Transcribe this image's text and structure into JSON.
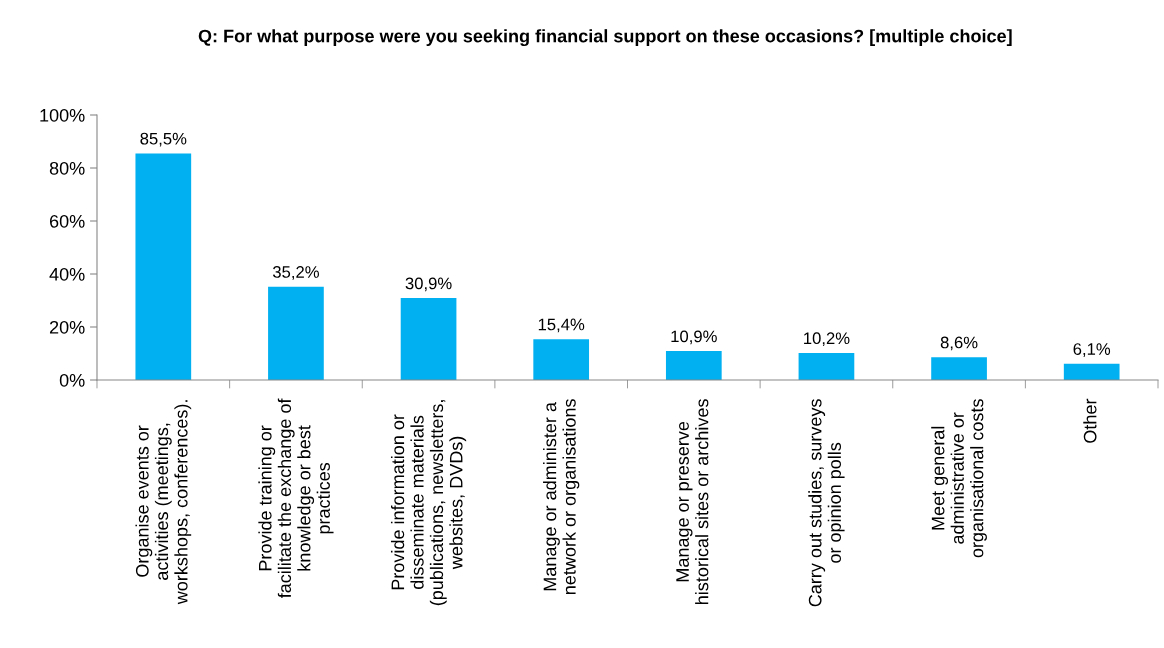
{
  "chart_data": {
    "type": "bar",
    "title": "Q: For what purpose were you seeking financial support on these occasions? [multiple choice]",
    "categories": [
      "Organise events or\nactivities (meetings,\nworkshops, conferences).",
      "Provide training or\nfacilitate the exchange of\nknowledge or best\npractices",
      "Provide information or\ndisseminate materials\n(publications, newsletters,\nwebsites, DVDs)",
      "Manage or administer a\nnetwork or organisations",
      "Manage or preserve\nhistorical sites or archives",
      "Carry out studies, surveys\nor opinion polls",
      "Meet general\nadministrative or\norganisational costs",
      "Other"
    ],
    "values": [
      85.5,
      35.2,
      30.9,
      15.4,
      10.9,
      10.2,
      8.6,
      6.1
    ],
    "value_labels": [
      "85,5%",
      "35,2%",
      "30,9%",
      "15,4%",
      "10,9%",
      "10,2%",
      "8,6%",
      "6,1%"
    ],
    "color": "#00b0f0",
    "ylim": [
      0,
      100
    ],
    "yticks": [
      {
        "value": 0,
        "label": "0%"
      },
      {
        "value": 20,
        "label": "20%"
      },
      {
        "value": 40,
        "label": "40%"
      },
      {
        "value": 60,
        "label": "60%"
      },
      {
        "value": 80,
        "label": "80%"
      },
      {
        "value": 100,
        "label": "100%"
      }
    ],
    "grid": false
  }
}
